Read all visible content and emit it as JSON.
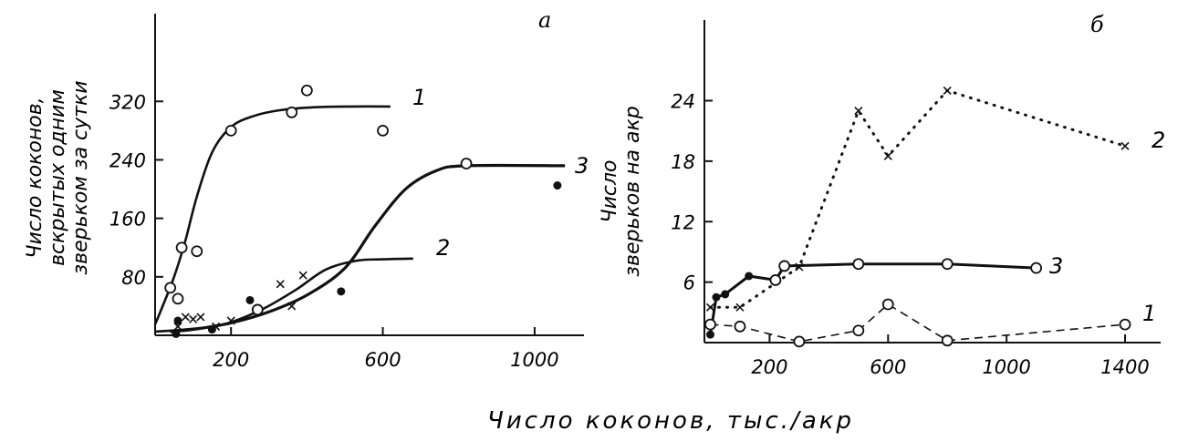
{
  "shared_xlabel": "Число коконов, тыс./акр",
  "chart_data": [
    {
      "panel": "a",
      "type": "scatter",
      "ylabel_lines": [
        "Число коконов,",
        "вскрытых одним",
        "зверьком за сутки"
      ],
      "xticks": [
        200,
        600,
        1000
      ],
      "yticks": [
        80,
        160,
        240,
        320
      ],
      "xlim": [
        0,
        1130
      ],
      "ylim": [
        0,
        440
      ],
      "series": [
        {
          "name": "1",
          "curve": [
            [
              0,
              15
            ],
            [
              20,
              40
            ],
            [
              50,
              80
            ],
            [
              80,
              130
            ],
            [
              110,
              190
            ],
            [
              150,
              250
            ],
            [
              200,
              285
            ],
            [
              260,
              300
            ],
            [
              330,
              308
            ],
            [
              420,
              312
            ],
            [
              520,
              313
            ],
            [
              620,
              313
            ]
          ],
          "points": [
            [
              40,
              65
            ],
            [
              60,
              50
            ],
            [
              70,
              120
            ],
            [
              110,
              115
            ],
            [
              200,
              280
            ],
            [
              360,
              305
            ],
            [
              400,
              335
            ],
            [
              600,
              280
            ]
          ],
          "markers": [
            "circle",
            "circle",
            "circle",
            "circle",
            "circle",
            "circle",
            "circle",
            "circle"
          ]
        },
        {
          "name": "2",
          "curve": [
            [
              0,
              5
            ],
            [
              80,
              8
            ],
            [
              180,
              15
            ],
            [
              280,
              35
            ],
            [
              370,
              62
            ],
            [
              450,
              90
            ],
            [
              530,
              102
            ],
            [
              600,
              104
            ],
            [
              680,
              105
            ]
          ],
          "points": [
            [
              60,
              12
            ],
            [
              80,
              25
            ],
            [
              100,
              22
            ],
            [
              120,
              25
            ],
            [
              160,
              12
            ],
            [
              200,
              20
            ],
            [
              270,
              35
            ],
            [
              330,
              70
            ],
            [
              360,
              40
            ],
            [
              390,
              82
            ]
          ],
          "markers": [
            "x",
            "x",
            "x",
            "x",
            "x",
            "x",
            "circle",
            "x",
            "x",
            "x"
          ]
        },
        {
          "name": "3",
          "curve": [
            [
              40,
              5
            ],
            [
              100,
              8
            ],
            [
              200,
              17
            ],
            [
              300,
              32
            ],
            [
              400,
              55
            ],
            [
              500,
              92
            ],
            [
              580,
              150
            ],
            [
              660,
              200
            ],
            [
              740,
              225
            ],
            [
              820,
              232
            ],
            [
              1080,
              232
            ]
          ],
          "points": [
            [
              55,
              2
            ],
            [
              60,
              20
            ],
            [
              150,
              8
            ],
            [
              250,
              48
            ],
            [
              490,
              60
            ],
            [
              820,
              235
            ],
            [
              1060,
              205
            ]
          ],
          "markers": [
            "dot",
            "dot",
            "dot",
            "dot",
            "dot",
            "circle",
            "dot"
          ]
        }
      ]
    },
    {
      "panel": "б",
      "type": "line",
      "ylabel_lines": [
        "Число",
        "зверьков на акр"
      ],
      "xticks": [
        200,
        600,
        1000,
        1400
      ],
      "yticks": [
        6,
        12,
        18,
        24
      ],
      "xlim": [
        -20,
        1520
      ],
      "ylim": [
        0,
        32
      ],
      "series": [
        {
          "name": "1",
          "style": "dashed",
          "points": [
            [
              0,
              1.8
            ],
            [
              100,
              1.6
            ],
            [
              300,
              0.1
            ],
            [
              500,
              1.2
            ],
            [
              600,
              3.8
            ],
            [
              800,
              0.2
            ],
            [
              1400,
              1.8
            ]
          ],
          "markers": [
            "circle",
            "circle",
            "circle",
            "circle",
            "circle",
            "circle",
            "circle"
          ]
        },
        {
          "name": "2",
          "style": "dotted",
          "points": [
            [
              0,
              3.5
            ],
            [
              100,
              3.5
            ],
            [
              300,
              7.5
            ],
            [
              500,
              23
            ],
            [
              600,
              18.5
            ],
            [
              800,
              25
            ],
            [
              1400,
              19.5
            ]
          ],
          "markers": [
            "x",
            "x",
            "x",
            "x",
            "x",
            "x",
            "x"
          ]
        },
        {
          "name": "3",
          "style": "solid",
          "points": [
            [
              0,
              0.8
            ],
            [
              20,
              4.5
            ],
            [
              50,
              4.8
            ],
            [
              130,
              6.6
            ],
            [
              220,
              6.2
            ],
            [
              250,
              7.6
            ],
            [
              500,
              7.8
            ],
            [
              800,
              7.8
            ],
            [
              1100,
              7.4
            ]
          ],
          "markers": [
            "dot",
            "dot",
            "dot",
            "dot",
            "circle",
            "circle",
            "circle",
            "circle",
            "circle"
          ]
        }
      ]
    }
  ]
}
